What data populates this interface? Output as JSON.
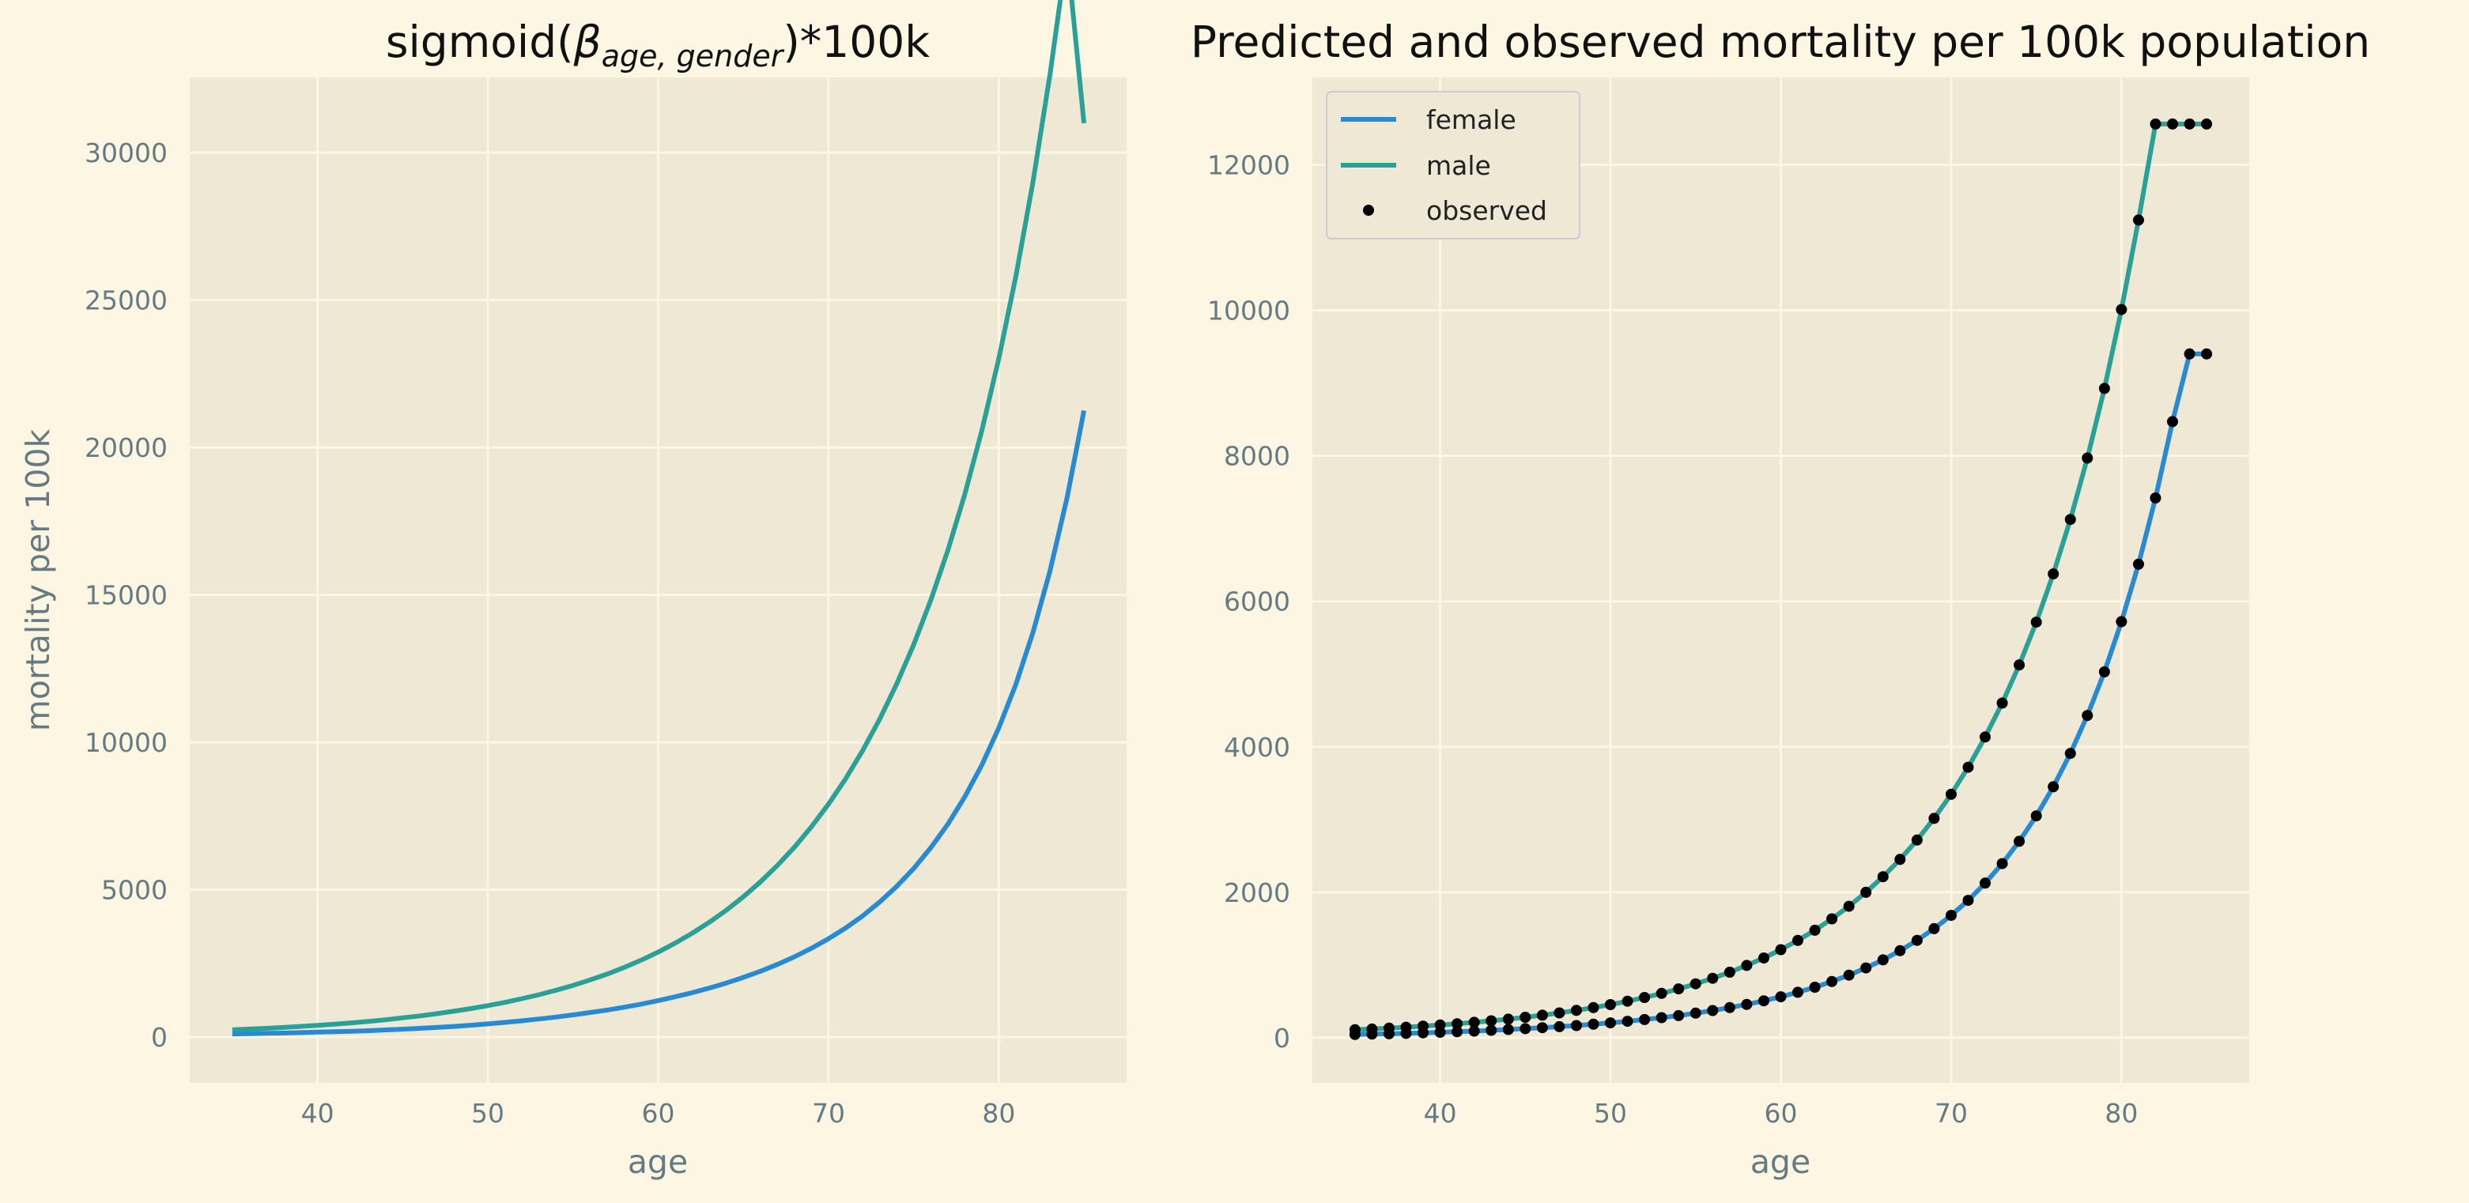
{
  "colors": {
    "figure_bg": "#fdf6e3",
    "plot_bg": "#eee8d5",
    "grid": "#fdf6e3",
    "female": "#268bd2",
    "male": "#2aa198",
    "observed": "#000000",
    "tick_text": "#657b83"
  },
  "chart_data": [
    {
      "type": "line",
      "title_main": "sigmoid(",
      "title_beta": "β",
      "title_sub": "age, gender",
      "title_end": ")*100k",
      "xlabel": "age",
      "ylabel": "mortality per 100k",
      "xlim": [
        32.5,
        87.5
      ],
      "ylim": [
        -1550,
        32550
      ],
      "grid": true,
      "legend": null,
      "x_ticks": [
        40,
        50,
        60,
        70,
        80
      ],
      "y_ticks": [
        0,
        5000,
        10000,
        15000,
        20000,
        25000,
        30000
      ],
      "x": [
        35,
        36,
        37,
        38,
        39,
        40,
        41,
        42,
        43,
        44,
        45,
        46,
        47,
        48,
        49,
        50,
        51,
        52,
        53,
        54,
        55,
        56,
        57,
        58,
        59,
        60,
        61,
        62,
        63,
        64,
        65,
        66,
        67,
        68,
        69,
        70,
        71,
        72,
        73,
        74,
        75,
        76,
        77,
        78,
        79,
        80,
        81,
        82,
        83,
        84,
        85
      ],
      "series": [
        {
          "color_key": "female",
          "values": [
            110,
            120,
            130,
            140,
            155,
            170,
            185,
            200,
            220,
            245,
            270,
            300,
            330,
            365,
            405,
            450,
            500,
            555,
            615,
            680,
            755,
            835,
            920,
            1015,
            1120,
            1240,
            1370,
            1510,
            1665,
            1835,
            2025,
            2235,
            2465,
            2725,
            3015,
            3340,
            3700,
            4110,
            4580,
            5110,
            5720,
            6420,
            7220,
            8150,
            9230,
            10490,
            11970,
            13720,
            15800,
            18280,
            21250
          ]
        },
        {
          "color_key": "male",
          "values": [
            250,
            275,
            300,
            330,
            365,
            400,
            440,
            485,
            535,
            590,
            655,
            720,
            795,
            880,
            970,
            1070,
            1180,
            1305,
            1440,
            1590,
            1755,
            1940,
            2140,
            2365,
            2610,
            2885,
            3190,
            3525,
            3895,
            4305,
            4760,
            5265,
            5825,
            6445,
            7135,
            7905,
            8760,
            9715,
            10780,
            11975,
            13310,
            14810,
            16500,
            18410,
            20570,
            23020,
            25810,
            28990,
            32630,
            36800,
            31000
          ]
        }
      ]
    },
    {
      "type": "line",
      "title": "Predicted and observed mortality per 100k population",
      "xlabel": "age",
      "ylabel": "",
      "xlim": [
        32.5,
        87.5
      ],
      "ylim": [
        -620,
        13200
      ],
      "grid": true,
      "legend": "top-left",
      "legend_labels": [
        "female",
        "male",
        "observed"
      ],
      "x_ticks": [
        40,
        50,
        60,
        70,
        80
      ],
      "y_ticks": [
        0,
        2000,
        4000,
        6000,
        8000,
        10000,
        12000
      ],
      "x": [
        35,
        36,
        37,
        38,
        39,
        40,
        41,
        42,
        43,
        44,
        45,
        46,
        47,
        48,
        49,
        50,
        51,
        52,
        53,
        54,
        55,
        56,
        57,
        58,
        59,
        60,
        61,
        62,
        63,
        64,
        65,
        66,
        67,
        68,
        69,
        70,
        71,
        72,
        73,
        74,
        75,
        76,
        77,
        78,
        79,
        80,
        81,
        82,
        83,
        84,
        85
      ],
      "series": [
        {
          "name": "female",
          "color_key": "female",
          "values": [
            45,
            50,
            55,
            60,
            68,
            75,
            83,
            92,
            102,
            113,
            125,
            138,
            152,
            168,
            186,
            205,
            226,
            250,
            276,
            305,
            338,
            374,
            414,
            458,
            508,
            563,
            625,
            695,
            773,
            861,
            960,
            1071,
            1197,
            1339,
            1500,
            1682,
            1889,
            2125,
            2394,
            2700,
            3050,
            3450,
            3908,
            4430,
            5030,
            5720,
            6510,
            7420,
            8470,
            9400,
            9400
          ]
        },
        {
          "name": "male",
          "color_key": "male",
          "values": [
            110,
            120,
            132,
            145,
            160,
            175,
            193,
            212,
            233,
            256,
            282,
            310,
            341,
            376,
            414,
            456,
            502,
            553,
            610,
            672,
            741,
            817,
            901,
            994,
            1097,
            1211,
            1338,
            1478,
            1634,
            1807,
            2000,
            2214,
            2452,
            2718,
            3015,
            3347,
            3718,
            4134,
            4600,
            5124,
            5713,
            6376,
            7124,
            7969,
            8926,
            10010,
            11240,
            12560,
            12560,
            12560,
            12560
          ]
        },
        {
          "name": "observed",
          "color_key": "observed",
          "marker": "dot",
          "points_of": [
            "female",
            "male"
          ]
        }
      ]
    }
  ]
}
